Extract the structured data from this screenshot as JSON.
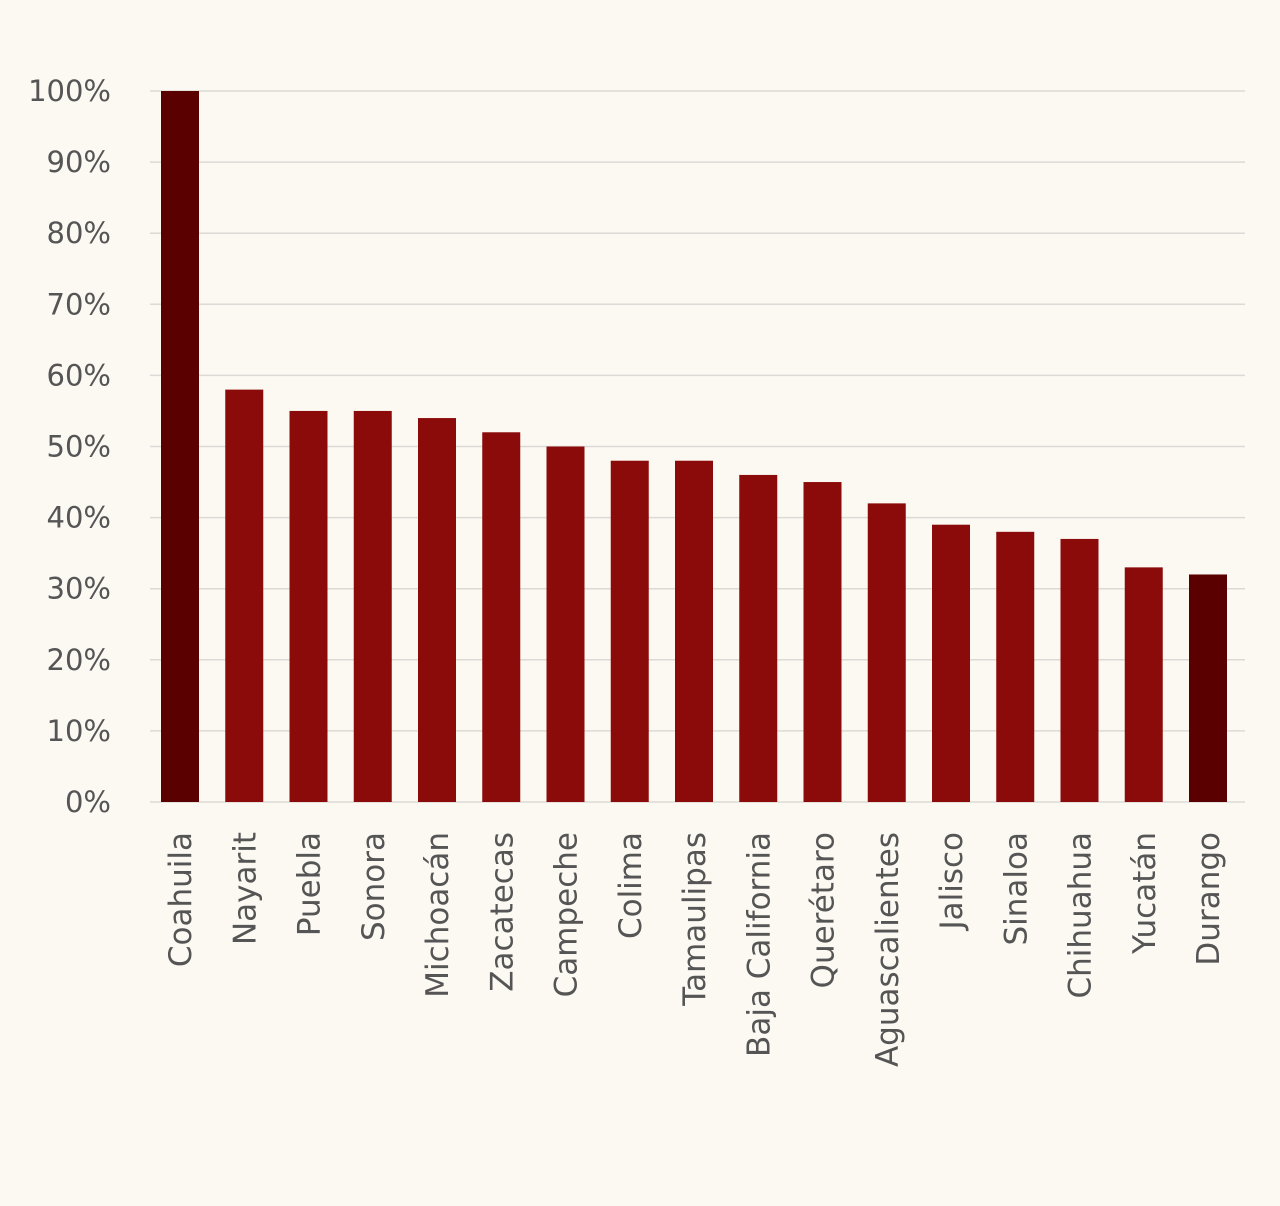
{
  "chart_data": {
    "type": "bar",
    "title": "",
    "xlabel": "",
    "ylabel": "",
    "ylim": [
      0,
      100
    ],
    "y_ticks": [
      "0%",
      "10%",
      "20%",
      "30%",
      "40%",
      "50%",
      "60%",
      "70%",
      "80%",
      "90%",
      "100%"
    ],
    "grid": true,
    "categories": [
      "Coahuila",
      "Nayarit",
      "Puebla",
      "Sonora",
      "Michoacán",
      "Zacatecas",
      "Campeche",
      "Colima",
      "Tamaulipas",
      "Baja California",
      "Querétaro",
      "Aguascalientes",
      "Jalisco",
      "Sinaloa",
      "Chihuahua",
      "Yucatán",
      "Durango"
    ],
    "values": [
      100,
      58,
      55,
      55,
      54,
      52,
      50,
      48,
      48,
      46,
      45,
      42,
      39,
      38,
      37,
      33,
      32
    ],
    "highlighted": [
      "Coahuila",
      "Durango"
    ],
    "colors": {
      "bar": "#8b0a0a",
      "highlight": "#5a0000",
      "background": "#fcf8f2",
      "grid": "#dcdad6",
      "text": "#555555"
    }
  }
}
